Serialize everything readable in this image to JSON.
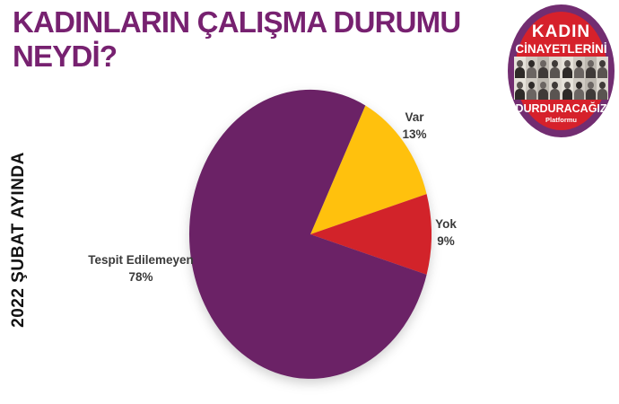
{
  "header": {
    "title_line1": "KADINLARIN ÇALIŞMA DURUMU",
    "title_line2": "NEYDİ?",
    "title_color": "#772170"
  },
  "side_label": "2022 ŞUBAT AYINDA",
  "logo": {
    "line1": "KADIN",
    "line2": "CİNAYETLERİNİ",
    "line3": "DURDURACAĞIZ",
    "line4": "Platformu",
    "ring_color": "#722d71",
    "inner_color": "#d6212b"
  },
  "chart_data": {
    "type": "pie",
    "title": "KADINLARIN ÇALIŞMA DURUMU NEYDİ?",
    "context_label": "2022 ŞUBAT AYINDA",
    "start_angle_deg": 27,
    "legend_position": "none",
    "slices": [
      {
        "label": "Var",
        "value": 13,
        "pct_label": "13%",
        "color": "#ffc10d"
      },
      {
        "label": "Yok",
        "value": 9,
        "pct_label": "9%",
        "color": "#d2232a"
      },
      {
        "label": "Tespit Edilemeyen",
        "value": 78,
        "pct_label": "78%",
        "color": "#6b2266"
      }
    ]
  }
}
